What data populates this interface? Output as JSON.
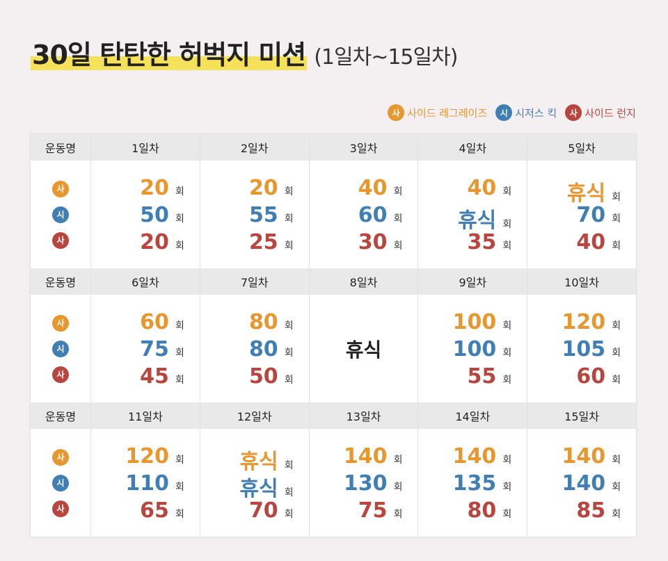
{
  "header": {
    "title": "30일 탄탄한 허벅지 미션",
    "subtitle": "(1일차~15일차)"
  },
  "legend": {
    "items": [
      {
        "icon": "사",
        "label": "사이드 레그레이즈",
        "color": "#e8962e"
      },
      {
        "icon": "시",
        "label": "시저스 킥",
        "color": "#3f7fb5"
      },
      {
        "icon": "사",
        "label": "사이드 런지",
        "color": "#b8463f"
      }
    ]
  },
  "table": {
    "row_header": "운동명",
    "unit": "회",
    "blocks": [
      {
        "days": [
          {
            "label": "1일차",
            "values": [
              20,
              50,
              20
            ]
          },
          {
            "label": "2일차",
            "values": [
              20,
              55,
              25
            ]
          },
          {
            "label": "3일차",
            "values": [
              40,
              60,
              30
            ]
          },
          {
            "label": "4일차",
            "values": [
              40,
              "휴식",
              35
            ]
          },
          {
            "label": "5일차",
            "values": [
              "휴식",
              70,
              40
            ]
          }
        ]
      },
      {
        "days": [
          {
            "label": "6일차",
            "values": [
              60,
              75,
              45
            ]
          },
          {
            "label": "7일차",
            "values": [
              80,
              80,
              50
            ]
          },
          {
            "label": "8일차",
            "rest": "휴식"
          },
          {
            "label": "9일차",
            "values": [
              100,
              100,
              55
            ]
          },
          {
            "label": "10일차",
            "values": [
              120,
              105,
              60
            ]
          }
        ]
      },
      {
        "days": [
          {
            "label": "11일차",
            "values": [
              120,
              110,
              65
            ]
          },
          {
            "label": "12일차",
            "values": [
              "휴식",
              "휴식",
              70
            ]
          },
          {
            "label": "13일차",
            "values": [
              140,
              130,
              75
            ]
          },
          {
            "label": "14일차",
            "values": [
              140,
              135,
              80
            ]
          },
          {
            "label": "15일차",
            "values": [
              140,
              140,
              85
            ]
          }
        ]
      }
    ]
  }
}
